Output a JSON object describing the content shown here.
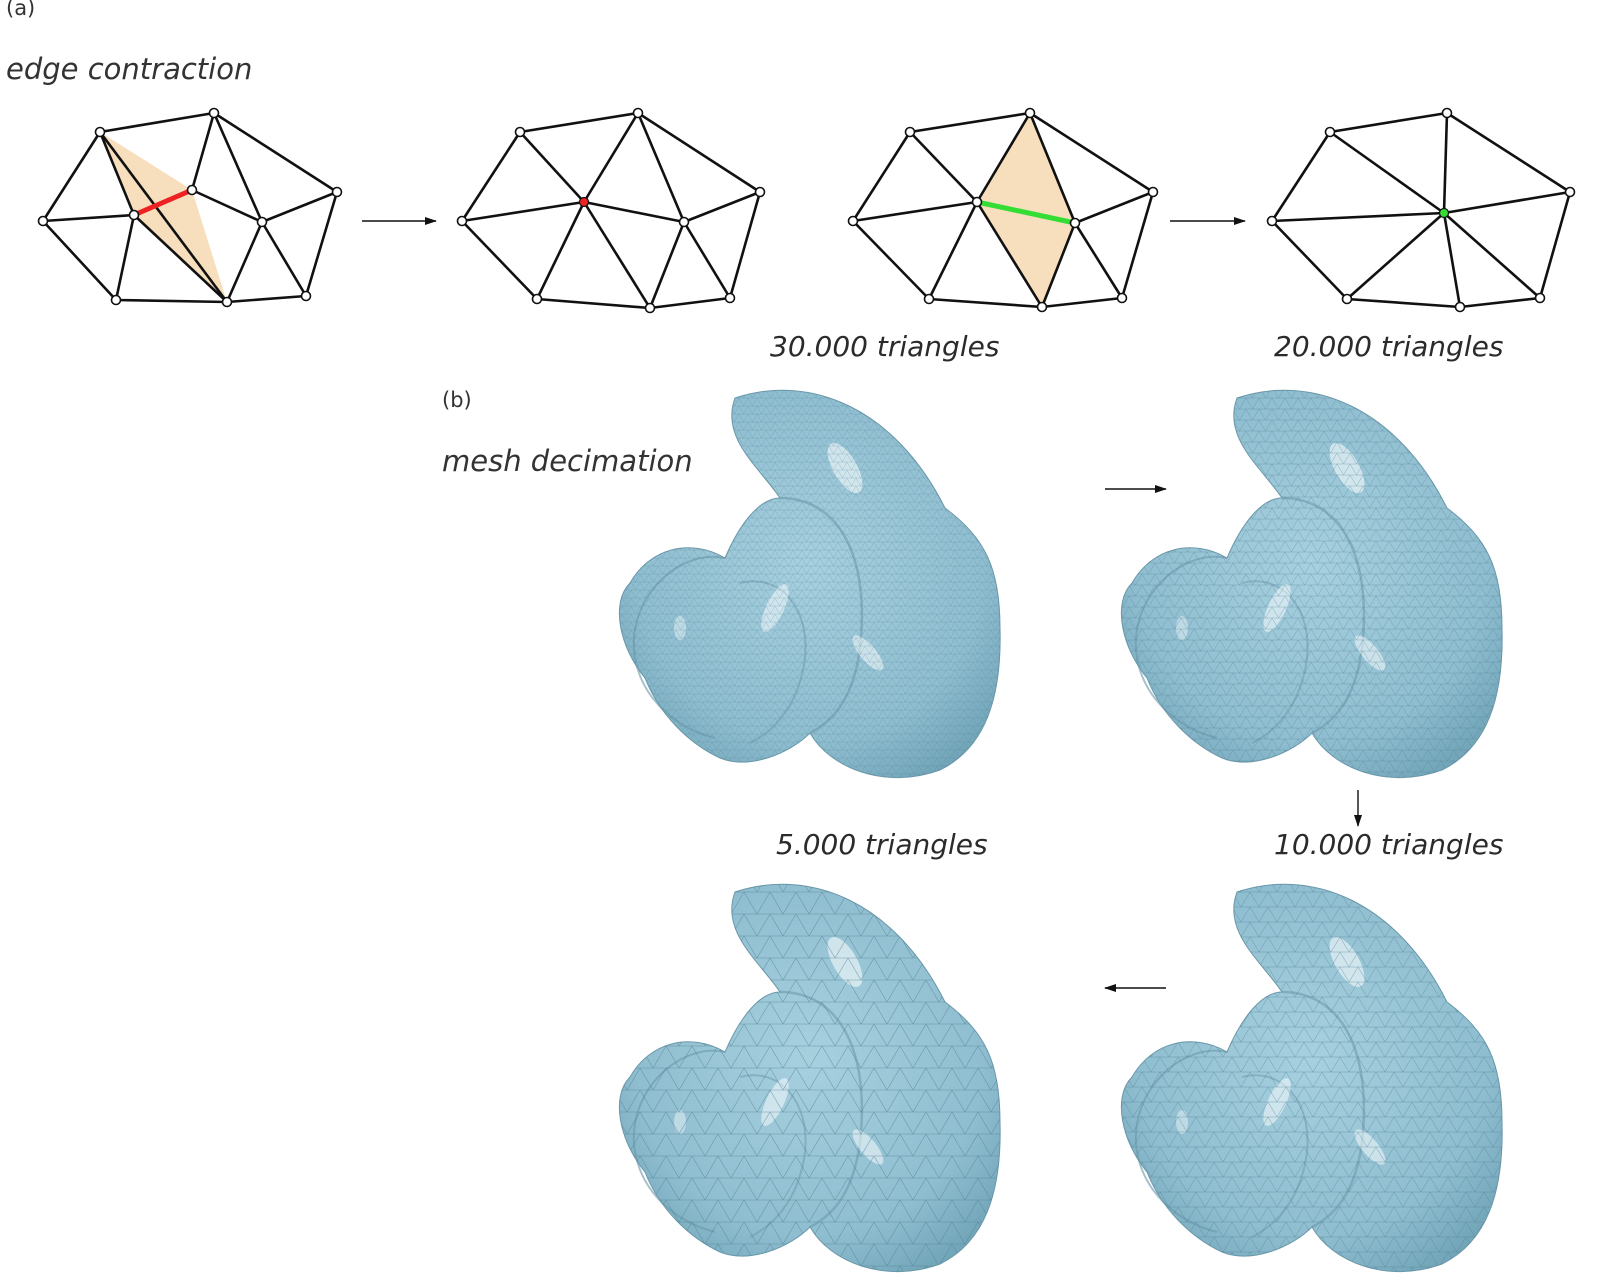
{
  "panel_a": {
    "tag": "(a)",
    "title": "edge contraction"
  },
  "panel_b": {
    "tag": "(b)",
    "title": "mesh decimation",
    "stages": [
      {
        "label": "30.000 triangles"
      },
      {
        "label": "20.000 triangles"
      },
      {
        "label": "10.000 triangles"
      },
      {
        "label": "5.000 triangles"
      }
    ]
  },
  "colors": {
    "contracted_edge_1": "#ee2222",
    "contracted_edge_2": "#33dd33",
    "face_highlight": "#f7dfbd",
    "mesh_surface": "#8fbed0",
    "mesh_lines": "#4e7f92"
  },
  "icons": [
    "arrow-right-icon",
    "arrow-down-icon",
    "arrow-left-icon"
  ]
}
